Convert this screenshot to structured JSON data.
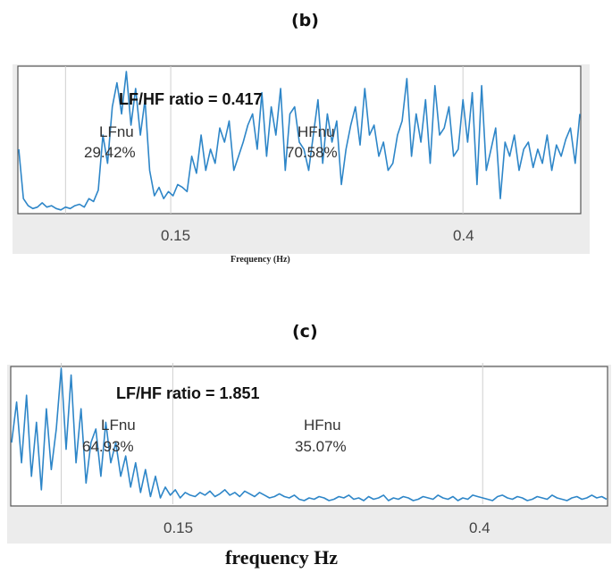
{
  "panels": {
    "b": {
      "label": "(b)",
      "ratio_text": "LF/HF ratio = 0.417",
      "lf_label": "LFnu",
      "lf_value": "29.42%",
      "hf_label": "HFnu",
      "hf_value": "70.58%",
      "xlabel": "Frequency (Hz)",
      "ticks": [
        "0.15",
        "0.4"
      ]
    },
    "c": {
      "label": "(c)",
      "ratio_text": "LF/HF ratio = 1.851",
      "lf_label": "LFnu",
      "lf_value": "64.93%",
      "hf_label": "HFnu",
      "hf_value": "35.07%",
      "xlabel": "frequency Hz",
      "ticks": [
        "0.15",
        "0.4"
      ]
    }
  },
  "chart_data": [
    {
      "type": "line",
      "panel": "b",
      "xlabel": "Frequency (Hz)",
      "ylabel": "",
      "xlim": [
        0.02,
        0.5
      ],
      "ylim": [
        0,
        1
      ],
      "xticks": [
        0.15,
        0.4
      ],
      "vlines": [
        0.06,
        0.15,
        0.4
      ],
      "grid": false,
      "series": [
        {
          "color": "#2e86c8",
          "x": [
            0.02,
            0.024,
            0.028,
            0.032,
            0.036,
            0.04,
            0.044,
            0.048,
            0.052,
            0.056,
            0.06,
            0.064,
            0.068,
            0.072,
            0.076,
            0.08,
            0.084,
            0.088,
            0.092,
            0.096,
            0.1,
            0.104,
            0.108,
            0.112,
            0.116,
            0.12,
            0.124,
            0.128,
            0.132,
            0.136,
            0.14,
            0.144,
            0.148,
            0.152,
            0.156,
            0.16,
            0.164,
            0.168,
            0.172,
            0.176,
            0.18,
            0.184,
            0.188,
            0.192,
            0.196,
            0.2,
            0.204,
            0.208,
            0.212,
            0.216,
            0.22,
            0.224,
            0.228,
            0.232,
            0.236,
            0.24,
            0.244,
            0.248,
            0.252,
            0.256,
            0.26,
            0.264,
            0.268,
            0.272,
            0.276,
            0.28,
            0.284,
            0.288,
            0.292,
            0.296,
            0.3,
            0.304,
            0.308,
            0.312,
            0.316,
            0.32,
            0.324,
            0.328,
            0.332,
            0.336,
            0.34,
            0.344,
            0.348,
            0.352,
            0.356,
            0.36,
            0.364,
            0.368,
            0.372,
            0.376,
            0.38,
            0.384,
            0.388,
            0.392,
            0.396,
            0.4,
            0.404,
            0.408,
            0.412,
            0.416,
            0.42,
            0.424,
            0.428,
            0.432,
            0.436,
            0.44,
            0.444,
            0.448,
            0.452,
            0.456,
            0.46,
            0.464,
            0.468,
            0.472,
            0.476,
            0.48,
            0.484,
            0.488,
            0.492,
            0.496,
            0.5
          ],
          "y": [
            0.45,
            0.1,
            0.05,
            0.03,
            0.04,
            0.07,
            0.04,
            0.05,
            0.03,
            0.02,
            0.04,
            0.03,
            0.05,
            0.06,
            0.04,
            0.1,
            0.08,
            0.16,
            0.55,
            0.35,
            0.75,
            0.92,
            0.7,
            1.0,
            0.62,
            0.88,
            0.55,
            0.8,
            0.3,
            0.12,
            0.18,
            0.1,
            0.15,
            0.12,
            0.2,
            0.18,
            0.15,
            0.4,
            0.28,
            0.55,
            0.3,
            0.45,
            0.35,
            0.6,
            0.5,
            0.65,
            0.3,
            0.4,
            0.5,
            0.62,
            0.7,
            0.45,
            0.85,
            0.4,
            0.75,
            0.55,
            0.88,
            0.3,
            0.7,
            0.75,
            0.5,
            0.45,
            0.3,
            0.55,
            0.8,
            0.35,
            0.7,
            0.5,
            0.65,
            0.2,
            0.45,
            0.62,
            0.75,
            0.48,
            0.88,
            0.55,
            0.62,
            0.4,
            0.5,
            0.3,
            0.35,
            0.55,
            0.65,
            0.95,
            0.4,
            0.7,
            0.5,
            0.8,
            0.35,
            0.9,
            0.55,
            0.6,
            0.75,
            0.4,
            0.45,
            0.8,
            0.5,
            0.85,
            0.2,
            0.9,
            0.3,
            0.45,
            0.6,
            0.1,
            0.5,
            0.4,
            0.55,
            0.3,
            0.45,
            0.5,
            0.32,
            0.45,
            0.35,
            0.55,
            0.3,
            0.48,
            0.4,
            0.52,
            0.6,
            0.35,
            0.7
          ]
        }
      ]
    },
    {
      "type": "line",
      "panel": "c",
      "xlabel": "frequency Hz",
      "ylabel": "",
      "xlim": [
        0.02,
        0.5
      ],
      "ylim": [
        0,
        1
      ],
      "xticks": [
        0.15,
        0.4
      ],
      "vlines": [
        0.06,
        0.15,
        0.4
      ],
      "grid": false,
      "series": [
        {
          "color": "#2e86c8",
          "x": [
            0.02,
            0.024,
            0.028,
            0.032,
            0.036,
            0.04,
            0.044,
            0.048,
            0.052,
            0.056,
            0.06,
            0.064,
            0.068,
            0.072,
            0.076,
            0.08,
            0.084,
            0.088,
            0.092,
            0.096,
            0.1,
            0.104,
            0.108,
            0.112,
            0.116,
            0.12,
            0.124,
            0.128,
            0.132,
            0.136,
            0.14,
            0.144,
            0.148,
            0.152,
            0.156,
            0.16,
            0.164,
            0.168,
            0.172,
            0.176,
            0.18,
            0.184,
            0.188,
            0.192,
            0.196,
            0.2,
            0.204,
            0.208,
            0.212,
            0.216,
            0.22,
            0.224,
            0.228,
            0.232,
            0.236,
            0.24,
            0.244,
            0.248,
            0.252,
            0.256,
            0.26,
            0.264,
            0.268,
            0.272,
            0.276,
            0.28,
            0.284,
            0.288,
            0.292,
            0.296,
            0.3,
            0.304,
            0.308,
            0.312,
            0.316,
            0.32,
            0.324,
            0.328,
            0.332,
            0.336,
            0.34,
            0.344,
            0.348,
            0.352,
            0.356,
            0.36,
            0.364,
            0.368,
            0.372,
            0.376,
            0.38,
            0.384,
            0.388,
            0.392,
            0.396,
            0.4,
            0.404,
            0.408,
            0.412,
            0.416,
            0.42,
            0.424,
            0.428,
            0.432,
            0.436,
            0.44,
            0.444,
            0.448,
            0.452,
            0.456,
            0.46,
            0.464,
            0.468,
            0.472,
            0.476,
            0.48,
            0.484,
            0.488,
            0.492,
            0.496,
            0.5
          ],
          "y": [
            0.45,
            0.75,
            0.3,
            0.8,
            0.2,
            0.6,
            0.1,
            0.7,
            0.25,
            0.55,
            1.0,
            0.4,
            0.95,
            0.3,
            0.7,
            0.15,
            0.45,
            0.55,
            0.2,
            0.6,
            0.3,
            0.45,
            0.2,
            0.35,
            0.12,
            0.3,
            0.08,
            0.25,
            0.05,
            0.2,
            0.04,
            0.12,
            0.06,
            0.1,
            0.04,
            0.08,
            0.06,
            0.05,
            0.08,
            0.06,
            0.09,
            0.05,
            0.07,
            0.1,
            0.06,
            0.08,
            0.05,
            0.09,
            0.07,
            0.05,
            0.08,
            0.06,
            0.04,
            0.05,
            0.07,
            0.05,
            0.04,
            0.06,
            0.03,
            0.02,
            0.04,
            0.03,
            0.05,
            0.04,
            0.02,
            0.03,
            0.05,
            0.04,
            0.06,
            0.03,
            0.04,
            0.02,
            0.05,
            0.03,
            0.04,
            0.06,
            0.02,
            0.04,
            0.03,
            0.05,
            0.04,
            0.02,
            0.03,
            0.05,
            0.04,
            0.03,
            0.06,
            0.04,
            0.03,
            0.05,
            0.02,
            0.04,
            0.03,
            0.06,
            0.05,
            0.04,
            0.03,
            0.02,
            0.05,
            0.06,
            0.04,
            0.03,
            0.05,
            0.04,
            0.02,
            0.03,
            0.05,
            0.04,
            0.03,
            0.06,
            0.04,
            0.03,
            0.02,
            0.04,
            0.05,
            0.03,
            0.04,
            0.06,
            0.04,
            0.05,
            0.03
          ]
        }
      ]
    }
  ]
}
